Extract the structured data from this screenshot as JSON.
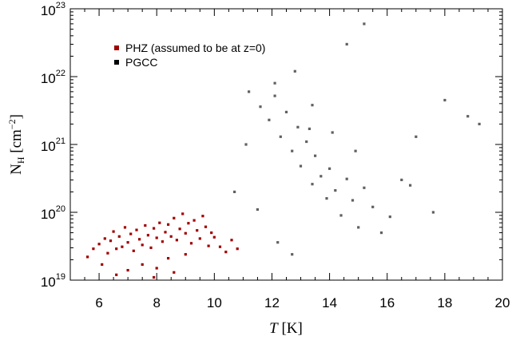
{
  "chart_data": {
    "type": "scatter",
    "xlabel": "T [K]",
    "ylabel": "N_H [cm^-2]",
    "xlabel_parts": {
      "var": "T",
      "unit": " [K]"
    },
    "ylabel_parts": {
      "base": "N",
      "sub": "H",
      "unit_open": " [cm",
      "sup": "−2",
      "unit_close": "]"
    },
    "xlim": [
      5,
      20
    ],
    "ylim": [
      1e+19,
      1e+23
    ],
    "y_scale": "log",
    "grid": false,
    "legend_position": "top-left",
    "x_ticks": [
      6,
      8,
      10,
      12,
      14,
      16,
      18,
      20
    ],
    "x_tick_labels": [
      "6",
      "8",
      "10",
      "12",
      "14",
      "16",
      "18",
      "20"
    ],
    "y_ticks": [
      1e+19,
      1e+20,
      1e+21,
      1e+22,
      1e+23
    ],
    "y_tick_labels": [
      {
        "base": "10",
        "exp": "19"
      },
      {
        "base": "10",
        "exp": "20"
      },
      {
        "base": "10",
        "exp": "21"
      },
      {
        "base": "10",
        "exp": "22"
      },
      {
        "base": "10",
        "exp": "23"
      }
    ],
    "series": [
      {
        "name": "PHZ (assumed to be at z=0)",
        "color": "#a00000",
        "marker": "square",
        "points": [
          [
            5.6,
            2.2e+19
          ],
          [
            5.8,
            2.9e+19
          ],
          [
            6.0,
            3.4e+19
          ],
          [
            6.1,
            1.7e+19
          ],
          [
            6.2,
            4.1e+19
          ],
          [
            6.3,
            2.5e+19
          ],
          [
            6.4,
            3.8e+19
          ],
          [
            6.5,
            5.2e+19
          ],
          [
            6.6,
            2.9e+19
          ],
          [
            6.7,
            4.4e+19
          ],
          [
            6.8,
            3.1e+19
          ],
          [
            6.9,
            6e+19
          ],
          [
            7.0,
            3.6e+19
          ],
          [
            7.1,
            4.8e+19
          ],
          [
            7.2,
            2.7e+19
          ],
          [
            7.3,
            5.5e+19
          ],
          [
            7.4,
            4e+19
          ],
          [
            7.5,
            3.3e+19
          ],
          [
            7.6,
            6.4e+19
          ],
          [
            7.7,
            4.6e+19
          ],
          [
            7.8,
            3e+19
          ],
          [
            7.9,
            5.8e+19
          ],
          [
            8.0,
            4.2e+19
          ],
          [
            8.1,
            7e+19
          ],
          [
            8.2,
            3.7e+19
          ],
          [
            8.3,
            5.1e+19
          ],
          [
            8.4,
            6.6e+19
          ],
          [
            8.5,
            4.4e+19
          ],
          [
            8.6,
            8.2e+19
          ],
          [
            8.7,
            3.9e+19
          ],
          [
            8.8,
            5.7e+19
          ],
          [
            8.9,
            9.5e+19
          ],
          [
            9.0,
            4.9e+19
          ],
          [
            9.1,
            6.9e+19
          ],
          [
            9.2,
            3.5e+19
          ],
          [
            9.3,
            7.6e+19
          ],
          [
            9.4,
            5.4e+19
          ],
          [
            9.5,
            4.1e+19
          ],
          [
            9.6,
            8.8e+19
          ],
          [
            9.7,
            6.1e+19
          ],
          [
            9.8,
            3.2e+19
          ],
          [
            9.9,
            5e+19
          ],
          [
            10.0,
            4.3e+19
          ],
          [
            10.2,
            3.1e+19
          ],
          [
            10.4,
            2.6e+19
          ],
          [
            10.6,
            3.9e+19
          ],
          [
            10.8,
            2.9e+19
          ],
          [
            7.5,
            1.7e+19
          ],
          [
            8.0,
            1.5e+19
          ],
          [
            8.4,
            2.1e+19
          ],
          [
            9.0,
            2.4e+19
          ],
          [
            7.0,
            1.4e+19
          ],
          [
            6.6,
            1.2e+19
          ],
          [
            7.9,
            1.1e+19
          ],
          [
            8.6,
            1.3e+19
          ]
        ]
      },
      {
        "name": "PGCC",
        "color": "#606060",
        "marker": "square",
        "points": [
          [
            11.2,
            6e+21
          ],
          [
            11.6,
            3.6e+21
          ],
          [
            11.9,
            2.3e+21
          ],
          [
            12.1,
            5.2e+21
          ],
          [
            12.3,
            1.3e+21
          ],
          [
            12.5,
            3e+21
          ],
          [
            12.7,
            8e+20
          ],
          [
            12.9,
            1.8e+21
          ],
          [
            13.0,
            4.8e+20
          ],
          [
            13.2,
            1.1e+21
          ],
          [
            13.4,
            2.6e+20
          ],
          [
            13.5,
            6.8e+20
          ],
          [
            13.7,
            3.4e+20
          ],
          [
            13.9,
            1.6e+20
          ],
          [
            14.0,
            4.4e+20
          ],
          [
            14.2,
            2.1e+20
          ],
          [
            14.4,
            9e+19
          ],
          [
            14.6,
            3.1e+20
          ],
          [
            14.8,
            1.5e+20
          ],
          [
            15.0,
            6e+19
          ],
          [
            15.2,
            2.3e+20
          ],
          [
            15.5,
            1.2e+20
          ],
          [
            15.8,
            5e+19
          ],
          [
            16.1,
            8.6e+19
          ],
          [
            12.8,
            1.2e+22
          ],
          [
            13.4,
            3.8e+21
          ],
          [
            14.1,
            1.5e+21
          ],
          [
            11.5,
            1.1e+20
          ],
          [
            12.2,
            3.6e+19
          ],
          [
            12.7,
            2.4e+19
          ],
          [
            16.5,
            3e+20
          ],
          [
            17.0,
            1.3e+21
          ],
          [
            18.0,
            4.5e+21
          ],
          [
            18.8,
            2.6e+21
          ],
          [
            19.2,
            2e+21
          ],
          [
            15.2,
            6e+22
          ],
          [
            14.6,
            3e+22
          ],
          [
            10.7,
            2e+20
          ],
          [
            11.1,
            1e+21
          ],
          [
            13.3,
            1.7e+21
          ],
          [
            14.9,
            8e+20
          ],
          [
            12.1,
            8e+21
          ],
          [
            16.8,
            2.5e+20
          ],
          [
            17.6,
            1e+20
          ]
        ]
      }
    ]
  }
}
